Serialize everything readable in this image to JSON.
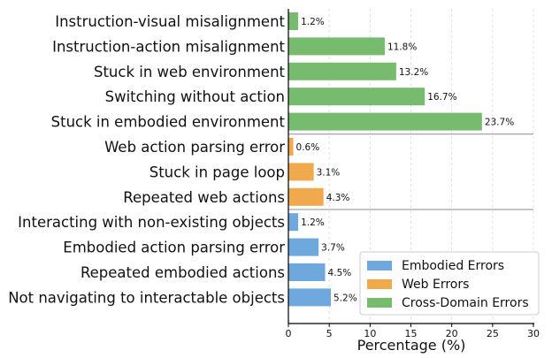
{
  "chart_data": {
    "type": "bar",
    "orientation": "horizontal",
    "categories": [
      "Instruction-visual misalignment",
      "Instruction-action misalignment",
      "Stuck in web environment",
      "Switching without action",
      "Stuck in embodied environment",
      "Web action parsing error",
      "Stuck in page loop",
      "Repeated web actions",
      "Interacting with non-existing objects",
      "Embodied action parsing error",
      "Repeated embodied actions",
      "Not navigating to interactable objects"
    ],
    "values": [
      1.2,
      11.8,
      13.2,
      16.7,
      23.7,
      0.6,
      3.1,
      4.3,
      1.2,
      3.7,
      4.5,
      5.2
    ],
    "value_labels": [
      "1.2%",
      "11.8%",
      "13.2%",
      "16.7%",
      "23.7%",
      "0.6%",
      "3.1%",
      "4.3%",
      "1.2%",
      "3.7%",
      "4.5%",
      "5.2%"
    ],
    "groups": [
      "Cross-Domain Errors",
      "Cross-Domain Errors",
      "Cross-Domain Errors",
      "Cross-Domain Errors",
      "Cross-Domain Errors",
      "Web Errors",
      "Web Errors",
      "Web Errors",
      "Embodied Errors",
      "Embodied Errors",
      "Embodied Errors",
      "Embodied Errors"
    ],
    "series": [
      {
        "name": "Embodied Errors",
        "color": "#6fa8dc"
      },
      {
        "name": "Web Errors",
        "color": "#f0a94c"
      },
      {
        "name": "Cross-Domain Errors",
        "color": "#77bb6e"
      }
    ],
    "xlabel": "Percentage (%)",
    "ylabel": "",
    "xlim": [
      0,
      30
    ],
    "xticks": [
      0,
      5,
      10,
      15,
      20,
      25,
      30
    ],
    "xtick_labels": [
      "0",
      "5",
      "10",
      "15",
      "20",
      "25",
      "30"
    ],
    "grid": "vertical dashed",
    "legend_position": "lower-right",
    "group_separators_after_index": [
      4,
      7
    ]
  }
}
